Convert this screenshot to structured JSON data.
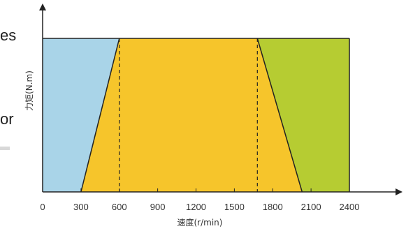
{
  "left_text_fragments": [
    "es",
    "or"
  ],
  "chart_data": {
    "type": "area",
    "xlabel": "速度(r/min)",
    "ylabel": "力矩(N.m)",
    "x_ticks": [
      0,
      300,
      600,
      900,
      1200,
      1500,
      1800,
      2100,
      2400
    ],
    "x_tick_labels": [
      "0",
      "300",
      "600",
      "900",
      "1200",
      "1500",
      "1800",
      "2100",
      "2400"
    ],
    "xlim": [
      0,
      2400
    ],
    "ylim": [
      0,
      1
    ],
    "regions": [
      {
        "name": "left",
        "color": "#a9d4e8",
        "polygon": [
          [
            0,
            0
          ],
          [
            0,
            1
          ],
          [
            600,
            1
          ],
          [
            300,
            0
          ]
        ]
      },
      {
        "name": "center",
        "color": "#f6c52b",
        "polygon": [
          [
            300,
            0
          ],
          [
            600,
            1
          ],
          [
            1680,
            1
          ],
          [
            2030,
            0
          ]
        ]
      },
      {
        "name": "right",
        "color": "#b6cc32",
        "polygon": [
          [
            1680,
            1
          ],
          [
            2400,
            1
          ],
          [
            2400,
            0
          ],
          [
            2030,
            0
          ]
        ]
      }
    ],
    "dashed_lines_x": [
      600,
      1680
    ],
    "colors": {
      "outline": "#222222",
      "axis": "#222222"
    }
  }
}
